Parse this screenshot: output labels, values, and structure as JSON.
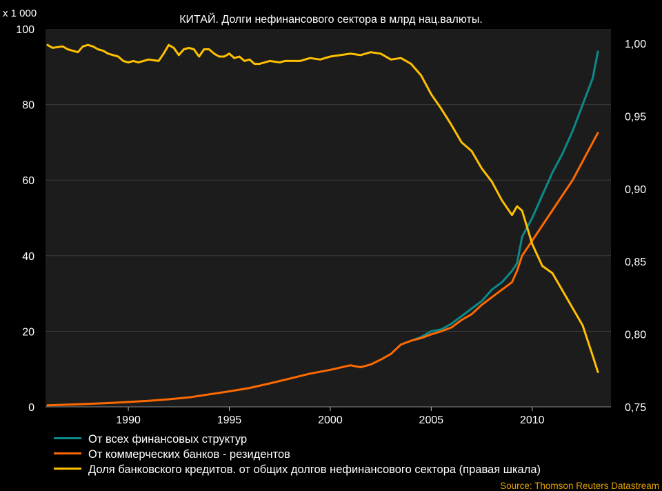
{
  "source": "Source: Thomson Reuters Datastream",
  "colors": {
    "background": "#000000",
    "plot_bg": "#1c1c1c",
    "teal": "#0c8a8a",
    "orange": "#ff6a00",
    "yellow": "#ffc000",
    "source": "#e8a300"
  },
  "chart_data": {
    "type": "line",
    "title": "КИТАЙ. Долги нефинансового сектора в млрд нац.валюты.",
    "left_unit_label": "x 1 000",
    "xlim": [
      1985.9,
      2013.9
    ],
    "x_ticks": [
      1990,
      1995,
      2000,
      2005,
      2010
    ],
    "ylim_left": [
      0,
      100
    ],
    "y_ticks_left": [
      "0",
      "20",
      "40",
      "60",
      "80",
      "100"
    ],
    "ylim_right": [
      0.75,
      1.01
    ],
    "y_ticks_right": [
      "0,75",
      "0,80",
      "0,85",
      "0,90",
      "0,95",
      "1,00"
    ],
    "grid": "horizontal",
    "legend_position": "bottom",
    "series": [
      {
        "name": "От всех финансовых структур",
        "axis": "left",
        "color": "#0c8a8a",
        "x": [
          2003.5,
          2004,
          2004.5,
          2005,
          2005.5,
          2006,
          2006.5,
          2007,
          2007.5,
          2008,
          2008.5,
          2009,
          2009.25,
          2009.5,
          2010,
          2010.5,
          2011,
          2011.5,
          2012,
          2012.5,
          2013,
          2013.25
        ],
        "values": [
          16.5,
          17.5,
          18.5,
          20,
          20.5,
          22,
          24,
          26,
          28,
          31,
          33,
          36,
          38,
          45,
          50,
          56,
          62,
          67,
          73,
          80,
          87,
          94
        ]
      },
      {
        "name": "От коммерческих банков - резидентов",
        "axis": "left",
        "color": "#ff6a00",
        "x": [
          1986,
          1987,
          1988,
          1989,
          1990,
          1991,
          1992,
          1993,
          1994,
          1995,
          1996,
          1997,
          1998,
          1999,
          2000,
          2001,
          2001.5,
          2002,
          2002.5,
          2003,
          2003.5,
          2004,
          2004.5,
          2005,
          2005.5,
          2006,
          2006.5,
          2007,
          2007.5,
          2008,
          2008.5,
          2009,
          2009.25,
          2009.5,
          2010,
          2010.5,
          2011,
          2011.5,
          2012,
          2012.5,
          2013,
          2013.25
        ],
        "values": [
          0.4,
          0.6,
          0.8,
          1.0,
          1.3,
          1.6,
          2.0,
          2.5,
          3.3,
          4.1,
          5.0,
          6.2,
          7.5,
          8.8,
          9.8,
          11,
          10.5,
          11.2,
          12.5,
          14,
          16.5,
          17.5,
          18.2,
          19.2,
          20,
          21,
          23,
          24.5,
          27,
          29,
          31,
          33,
          36,
          40,
          44,
          48,
          52,
          56,
          60,
          65,
          70,
          72.5
        ]
      },
      {
        "name": "Доля банковского кредитов. от общих долгов нефинансового сектора (правая шкала)",
        "axis": "right",
        "color": "#ffc000",
        "x": [
          1986,
          1986.25,
          1986.75,
          1987,
          1987.5,
          1987.75,
          1988,
          1988.25,
          1988.5,
          1988.75,
          1989,
          1989.5,
          1989.75,
          1990,
          1990.25,
          1990.5,
          1991,
          1991.5,
          1991.75,
          1992,
          1992.25,
          1992.5,
          1992.75,
          1993,
          1993.25,
          1993.5,
          1993.75,
          1994,
          1994.25,
          1994.5,
          1994.75,
          1995,
          1995.25,
          1995.5,
          1995.75,
          1996,
          1996.25,
          1996.5,
          1997,
          1997.5,
          1997.75,
          1998,
          1998.5,
          1999,
          1999.5,
          2000,
          2000.5,
          2001,
          2001.5,
          2002,
          2002.5,
          2003,
          2003.5,
          2004,
          2004.5,
          2005,
          2005.5,
          2006,
          2006.5,
          2007,
          2007.5,
          2008,
          2008.5,
          2009,
          2009.25,
          2009.5,
          2010,
          2010.5,
          2011,
          2011.5,
          2012,
          2012.5,
          2013,
          2013.25
        ],
        "values": [
          0.999,
          0.997,
          0.998,
          0.996,
          0.994,
          0.998,
          0.999,
          0.998,
          0.996,
          0.995,
          0.993,
          0.991,
          0.988,
          0.987,
          0.988,
          0.987,
          0.989,
          0.988,
          0.993,
          0.999,
          0.997,
          0.992,
          0.996,
          0.997,
          0.996,
          0.991,
          0.996,
          0.996,
          0.993,
          0.991,
          0.991,
          0.993,
          0.99,
          0.991,
          0.988,
          0.989,
          0.986,
          0.986,
          0.988,
          0.987,
          0.988,
          0.988,
          0.988,
          0.99,
          0.989,
          0.991,
          0.992,
          0.993,
          0.992,
          0.994,
          0.993,
          0.989,
          0.99,
          0.986,
          0.978,
          0.965,
          0.955,
          0.944,
          0.932,
          0.926,
          0.914,
          0.905,
          0.892,
          0.882,
          0.888,
          0.885,
          0.862,
          0.847,
          0.842,
          0.83,
          0.818,
          0.806,
          0.785,
          0.774
        ]
      }
    ]
  }
}
